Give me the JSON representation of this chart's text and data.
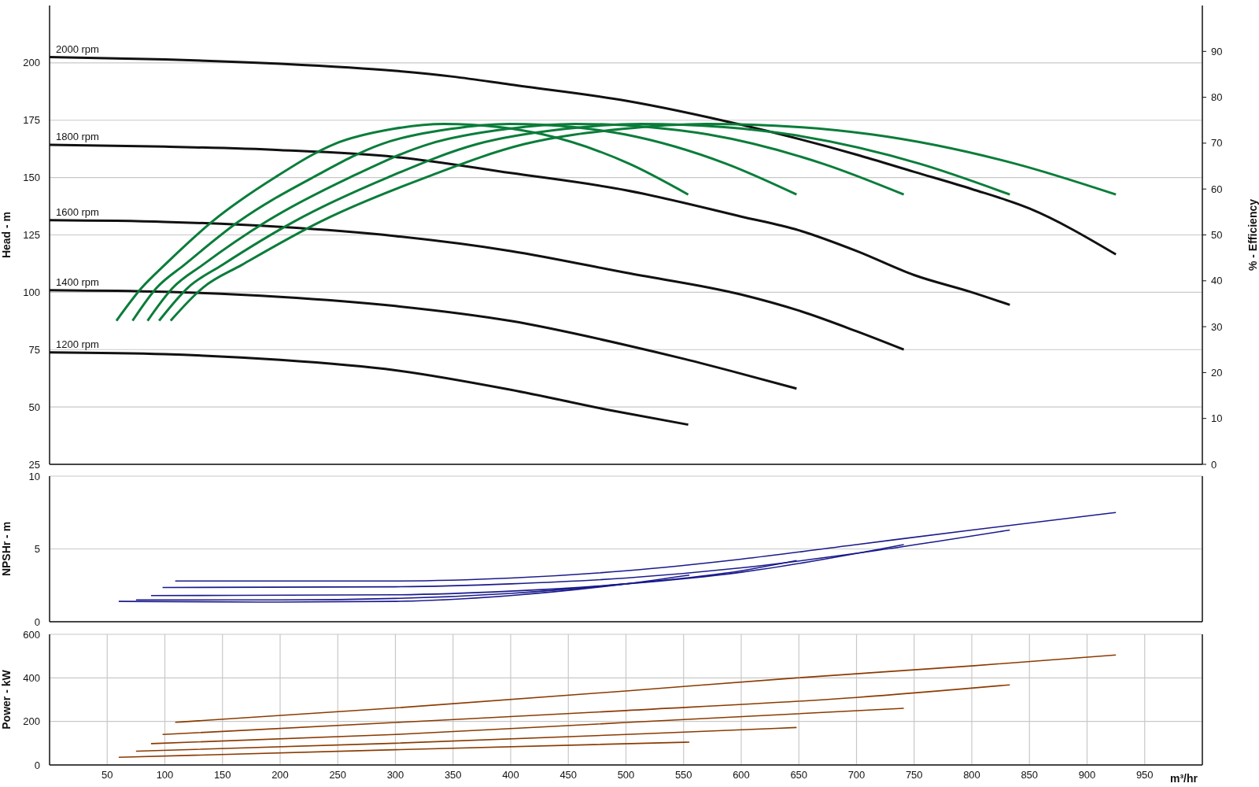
{
  "chart_data": [
    {
      "type": "line",
      "ylabel": "Head - m",
      "y2label": "% - Efficiency",
      "xlim": [
        0,
        1000
      ],
      "xticks": [
        50,
        100,
        150,
        200,
        250,
        300,
        350,
        400,
        450,
        500,
        550,
        600,
        650,
        700,
        750,
        800,
        850,
        900,
        950
      ],
      "ylim": [
        25,
        225
      ],
      "yticks": [
        25,
        50,
        75,
        100,
        125,
        150,
        175,
        200
      ],
      "y2lim": [
        0,
        100
      ],
      "y2ticks": [
        0,
        10,
        20,
        30,
        40,
        50,
        60,
        70,
        80,
        90
      ],
      "grid": true,
      "tick_labels": "y",
      "marker": "none",
      "series": [
        {
          "name": "2000 rpm",
          "color": "#111111",
          "x": [
            0,
            100,
            200,
            300,
            350,
            400,
            500,
            600,
            700,
            750,
            800,
            850,
            925
          ],
          "values": [
            202.5,
            201.5,
            199.6,
            196.5,
            194,
            190.5,
            183.5,
            173,
            160,
            152.5,
            145,
            136.5,
            116.5
          ]
        },
        {
          "name": "1800 rpm",
          "color": "#111111",
          "x": [
            0,
            100,
            200,
            300,
            400,
            500,
            600,
            650,
            700,
            750,
            800,
            833
          ],
          "values": [
            164.3,
            163.5,
            162,
            159,
            152,
            144.5,
            133,
            127,
            118,
            107.5,
            100,
            94.5
          ]
        },
        {
          "name": "1600 rpm",
          "color": "#111111",
          "x": [
            0,
            100,
            200,
            300,
            400,
            500,
            600,
            650,
            700,
            741
          ],
          "values": [
            131.4,
            130.7,
            128.5,
            124.5,
            118,
            108.5,
            99,
            92,
            83,
            75
          ]
        },
        {
          "name": "1400 rpm",
          "color": "#111111",
          "x": [
            0,
            100,
            200,
            300,
            400,
            500,
            550,
            600,
            648
          ],
          "values": [
            100.9,
            100.2,
            98,
            94,
            87.5,
            77,
            71,
            64.5,
            58
          ]
        },
        {
          "name": "1200 rpm",
          "color": "#111111",
          "x": [
            0,
            100,
            200,
            300,
            400,
            489,
            554
          ],
          "values": [
            73.8,
            73,
            70.5,
            66,
            57.5,
            48.3,
            42.3
          ]
        },
        {
          "color": "#0a7d3a",
          "axis": "y2",
          "x": [
            58,
            80,
            100,
            141,
            196,
            247,
            298,
            342,
            390,
            428,
            503,
            554
          ],
          "values": [
            31.3,
            38.5,
            43.5,
            52.9,
            62.6,
            69.8,
            73.1,
            74.2,
            73.5,
            71.9,
            65.5,
            58.8
          ]
        },
        {
          "color": "#0a7d3a",
          "axis": "y2",
          "x": [
            72,
            93,
            117,
            164,
            229,
            288,
            348,
            399,
            455,
            499,
            587,
            648
          ],
          "values": [
            31.3,
            38.5,
            43.5,
            52.9,
            62.6,
            69.8,
            73.1,
            74.2,
            73.5,
            71.9,
            65.5,
            58.8
          ]
        },
        {
          "color": "#0a7d3a",
          "axis": "y2",
          "x": [
            85,
            107,
            133,
            188,
            261,
            329,
            397,
            456,
            520,
            571,
            671,
            741
          ],
          "values": [
            31.3,
            38.5,
            43.5,
            52.9,
            62.6,
            69.8,
            73.1,
            74.2,
            73.5,
            71.9,
            65.5,
            58.8
          ]
        },
        {
          "color": "#0a7d3a",
          "axis": "y2",
          "x": [
            95,
            120,
            150,
            212,
            294,
            371,
            447,
            513,
            585,
            642,
            755,
            833
          ],
          "values": [
            31.3,
            38.5,
            43.5,
            52.9,
            62.6,
            69.8,
            73.1,
            74.2,
            73.5,
            71.9,
            65.5,
            58.8
          ]
        },
        {
          "color": "#0a7d3a",
          "axis": "y2",
          "x": [
            105,
            133,
            167,
            235,
            327,
            412,
            497,
            570,
            650,
            713,
            838,
            925
          ],
          "values": [
            31.3,
            38.5,
            43.5,
            52.9,
            62.6,
            69.8,
            73.1,
            74.2,
            73.5,
            71.9,
            65.5,
            58.8
          ]
        }
      ]
    },
    {
      "type": "line",
      "ylabel": "NPSHr - m",
      "xlim": [
        0,
        1000
      ],
      "xticks": [
        50,
        100,
        150,
        200,
        250,
        300,
        350,
        400,
        450,
        500,
        550,
        600,
        650,
        700,
        750,
        800,
        850,
        900,
        950
      ],
      "ylim": [
        0,
        10
      ],
      "yticks": [
        0,
        5,
        10
      ],
      "grid": true,
      "tick_labels": "y",
      "marker": "none",
      "series": [
        {
          "color": "#1a1a8c",
          "x": [
            109,
            300,
            400,
            500,
            600,
            700,
            800,
            925
          ],
          "values": [
            2.8,
            2.8,
            3,
            3.5,
            4.3,
            5.3,
            6.3,
            7.5
          ]
        },
        {
          "color": "#1a1a8c",
          "x": [
            98,
            300,
            400,
            500,
            600,
            700,
            833
          ],
          "values": [
            2.35,
            2.4,
            2.6,
            3,
            3.7,
            4.7,
            6.3
          ]
        },
        {
          "color": "#1a1a8c",
          "x": [
            88,
            300,
            400,
            500,
            600,
            741
          ],
          "values": [
            1.8,
            1.85,
            2.1,
            2.6,
            3.4,
            5.3
          ]
        },
        {
          "color": "#1a1a8c",
          "x": [
            75,
            200,
            300,
            400,
            500,
            600,
            648
          ],
          "values": [
            1.5,
            1.5,
            1.6,
            1.95,
            2.6,
            3.5,
            4.2
          ]
        },
        {
          "color": "#1a1a8c",
          "x": [
            60,
            200,
            300,
            400,
            500,
            555
          ],
          "values": [
            1.4,
            1.35,
            1.4,
            1.8,
            2.6,
            3.2
          ]
        }
      ]
    },
    {
      "type": "line",
      "ylabel": "Power - kW",
      "xlabel": "m³/hr",
      "xlim": [
        0,
        1000
      ],
      "xticks": [
        50,
        100,
        150,
        200,
        250,
        300,
        350,
        400,
        450,
        500,
        550,
        600,
        650,
        700,
        750,
        800,
        850,
        900,
        950
      ],
      "ylim": [
        0,
        600
      ],
      "yticks": [
        0,
        200,
        400,
        600
      ],
      "grid": true,
      "marker": "none",
      "series": [
        {
          "color": "#8b3a00",
          "x": [
            109,
            300,
            500,
            648,
            800,
            925
          ],
          "values": [
            196,
            262,
            340,
            400,
            455,
            505
          ]
        },
        {
          "color": "#8b3a00",
          "x": [
            98,
            300,
            500,
            700,
            833
          ],
          "values": [
            140,
            195,
            250,
            310,
            368
          ]
        },
        {
          "color": "#8b3a00",
          "x": [
            88,
            300,
            500,
            741
          ],
          "values": [
            98,
            140,
            195,
            260
          ]
        },
        {
          "color": "#8b3a00",
          "x": [
            75,
            300,
            500,
            648
          ],
          "values": [
            63,
            100,
            140,
            172
          ]
        },
        {
          "color": "#8b3a00",
          "x": [
            60,
            300,
            555
          ],
          "values": [
            35,
            70,
            105
          ]
        }
      ]
    }
  ]
}
